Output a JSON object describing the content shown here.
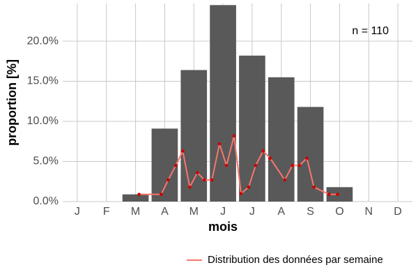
{
  "chart_data": {
    "type": "bar",
    "categories": [
      "J",
      "F",
      "M",
      "A",
      "M",
      "J",
      "J",
      "A",
      "S",
      "O",
      "N",
      "D"
    ],
    "values": [
      0,
      0,
      0.9,
      9.1,
      16.4,
      24.5,
      18.2,
      15.5,
      11.8,
      1.8,
      0,
      0
    ],
    "color": "#595959",
    "xlabel": "mois",
    "ylabel": "proportion [%]",
    "annotation": "n = 110",
    "ylim": [
      0,
      24.7
    ],
    "yticks": [
      {
        "value": 0,
        "label": "0.0%"
      },
      {
        "value": 5,
        "label": "5.0%"
      },
      {
        "value": 10,
        "label": "10.0%"
      },
      {
        "value": 15,
        "label": "15.0%"
      },
      {
        "value": 20,
        "label": "20.0%"
      }
    ],
    "xlim": [
      0.5,
      12.5
    ],
    "grid": true,
    "legend": "bottom-right",
    "series": [
      {
        "name": "Distribution des données par semaine",
        "type": "line",
        "color": "#f8766d",
        "point_color": "#cc0000",
        "x": [
          3.12,
          3.88,
          4.12,
          4.38,
          4.62,
          4.86,
          5.12,
          5.36,
          5.62,
          5.88,
          6.12,
          6.38,
          6.62,
          6.88,
          7.12,
          7.38,
          7.62,
          8.12,
          8.38,
          8.62,
          8.88,
          9.12,
          9.64,
          9.93
        ],
        "values": [
          0.9,
          0.9,
          2.7,
          4.5,
          6.3,
          1.8,
          3.6,
          2.7,
          2.7,
          7.2,
          4.5,
          8.2,
          1.0,
          1.8,
          4.5,
          6.3,
          5.4,
          2.7,
          4.5,
          4.5,
          5.4,
          1.8,
          0.9,
          0.9
        ]
      }
    ]
  }
}
